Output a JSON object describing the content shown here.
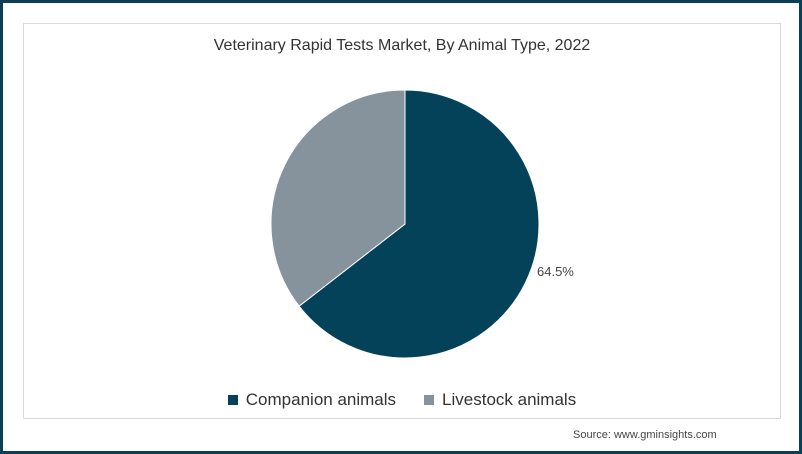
{
  "chart_data": {
    "type": "pie",
    "title": "Veterinary Rapid Tests Market, By Animal Type, 2022",
    "categories": [
      "Companion animals",
      "Livestock animals"
    ],
    "values": [
      64.5,
      35.5
    ],
    "colors": [
      "#04425a",
      "#86939d"
    ],
    "data_labels": [
      "64.5%",
      ""
    ],
    "legend_position": "bottom"
  },
  "title": "Veterinary Rapid Tests Market, By Animal Type, 2022",
  "label": "64.5%",
  "legend": [
    {
      "label": "Companion animals",
      "color": "#04425a"
    },
    {
      "label": "Livestock animals",
      "color": "#86939d"
    }
  ],
  "source": "Source: www.gminsights.com"
}
